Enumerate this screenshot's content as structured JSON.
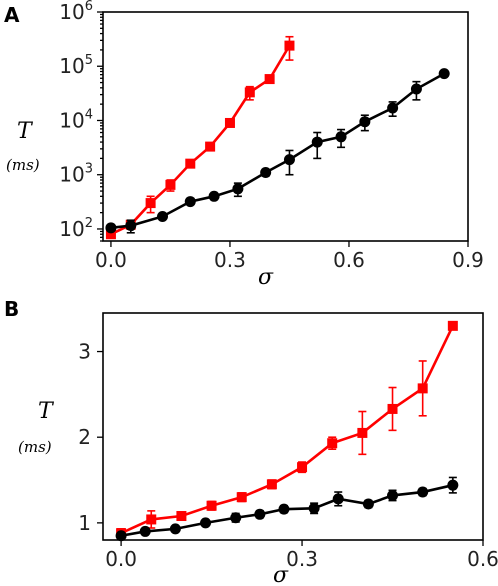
{
  "chart_data": [
    {
      "panel_label": "A",
      "type": "line",
      "yscale": "log",
      "xlabel": "σ",
      "ylabel": "T",
      "ylabel_unit": "(ms)",
      "xlim": [
        -0.02,
        0.9
      ],
      "ylim": [
        60,
        1000000
      ],
      "xticks": [
        0.0,
        0.3,
        0.6,
        0.9
      ],
      "xtick_labels": [
        "0.0",
        "0.3",
        "0.6",
        "0.9"
      ],
      "yticks": [
        100,
        1000,
        10000,
        100000,
        1000000
      ],
      "ytick_base": [
        "10",
        "10",
        "10",
        "10",
        "10"
      ],
      "ytick_exp": [
        "2",
        "3",
        "4",
        "5",
        "6"
      ],
      "series": [
        {
          "color": "#ff0000",
          "marker": "square",
          "x": [
            0.0,
            0.05,
            0.1,
            0.15,
            0.2,
            0.25,
            0.3,
            0.35,
            0.4,
            0.45
          ],
          "y": [
            80,
            120,
            300,
            650,
            1600,
            3300,
            9000,
            33000,
            58000,
            240000
          ],
          "err": [
            0,
            20,
            100,
            150,
            250,
            500,
            1000,
            9000,
            6000,
            110000
          ]
        },
        {
          "color": "#000000",
          "marker": "circle",
          "x": [
            0.0,
            0.05,
            0.13,
            0.2,
            0.26,
            0.32,
            0.39,
            0.45,
            0.52,
            0.58,
            0.64,
            0.71,
            0.77,
            0.84
          ],
          "y": [
            105,
            115,
            170,
            320,
            400,
            550,
            1100,
            1900,
            4000,
            5000,
            9500,
            17000,
            38000,
            73000
          ],
          "err": [
            0,
            30,
            20,
            40,
            50,
            150,
            150,
            900,
            2000,
            1800,
            3000,
            5000,
            14000,
            5000
          ]
        }
      ]
    },
    {
      "panel_label": "B",
      "type": "line",
      "xlabel": "σ",
      "ylabel": "T",
      "ylabel_unit": "(ms)",
      "xlim": [
        -0.03,
        0.6
      ],
      "ylim": [
        0.8,
        3.45
      ],
      "xticks": [
        0.0,
        0.3,
        0.6
      ],
      "xtick_labels": [
        "0.0",
        "0.3",
        "0.6"
      ],
      "yticks": [
        1,
        2,
        3
      ],
      "ytick_labels": [
        "1",
        "2",
        "3"
      ],
      "series": [
        {
          "color": "#ff0000",
          "marker": "square",
          "x": [
            0.0,
            0.05,
            0.1,
            0.15,
            0.2,
            0.25,
            0.3,
            0.35,
            0.4,
            0.45,
            0.5,
            0.55
          ],
          "y": [
            0.88,
            1.04,
            1.08,
            1.2,
            1.3,
            1.45,
            1.65,
            1.93,
            2.05,
            2.33,
            2.57,
            3.3
          ],
          "err": [
            0.05,
            0.1,
            0.04,
            0.05,
            0.05,
            0.05,
            0.06,
            0.07,
            0.25,
            0.25,
            0.32,
            0.04
          ]
        },
        {
          "color": "#000000",
          "marker": "circle",
          "x": [
            0.0,
            0.04,
            0.09,
            0.14,
            0.19,
            0.23,
            0.27,
            0.32,
            0.36,
            0.41,
            0.45,
            0.5,
            0.55
          ],
          "y": [
            0.85,
            0.9,
            0.93,
            1.0,
            1.06,
            1.1,
            1.16,
            1.17,
            1.28,
            1.22,
            1.32,
            1.36,
            1.44
          ],
          "err": [
            0.03,
            0.03,
            0.02,
            0.03,
            0.05,
            0.04,
            0.04,
            0.06,
            0.08,
            0.04,
            0.06,
            0.04,
            0.09
          ]
        }
      ]
    }
  ]
}
